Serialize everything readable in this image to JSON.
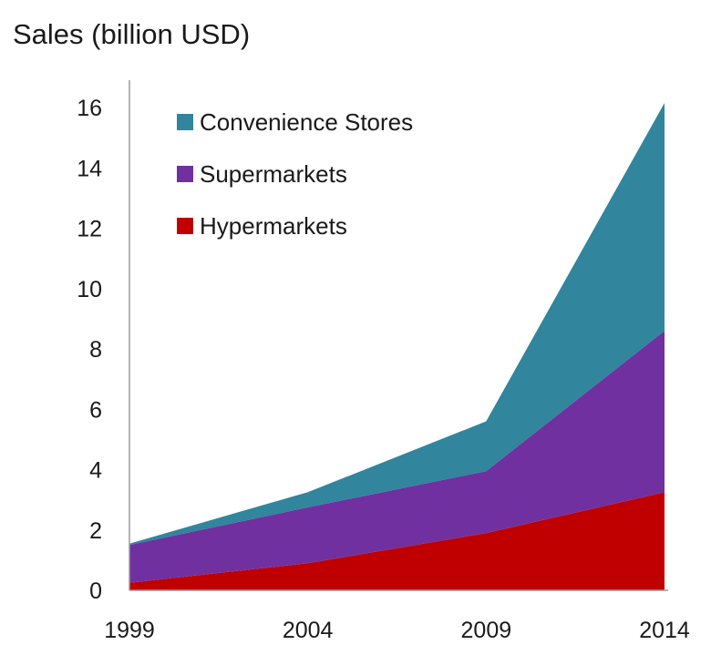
{
  "chart_data": {
    "type": "area",
    "stacked": true,
    "title": "Sales (billion USD)",
    "xlabel": "",
    "ylabel": "",
    "x": [
      "1999",
      "2004",
      "2009",
      "2014"
    ],
    "ylim": [
      0,
      16
    ],
    "yticks": [
      0,
      2,
      4,
      6,
      8,
      10,
      12,
      14,
      16
    ],
    "grid": false,
    "legend_position": "top-left",
    "series": [
      {
        "name": "Hypermarkets",
        "color": "#c00000",
        "values": [
          0.25,
          0.9,
          1.9,
          3.25
        ]
      },
      {
        "name": "Supermarkets",
        "color": "#7030a0",
        "values": [
          1.25,
          1.85,
          2.05,
          5.35
        ]
      },
      {
        "name": "Convenience Stores",
        "color": "#31859c",
        "values": [
          0.05,
          0.5,
          1.65,
          7.55
        ]
      }
    ],
    "legend_order": [
      "Convenience Stores",
      "Supermarkets",
      "Hypermarkets"
    ]
  }
}
